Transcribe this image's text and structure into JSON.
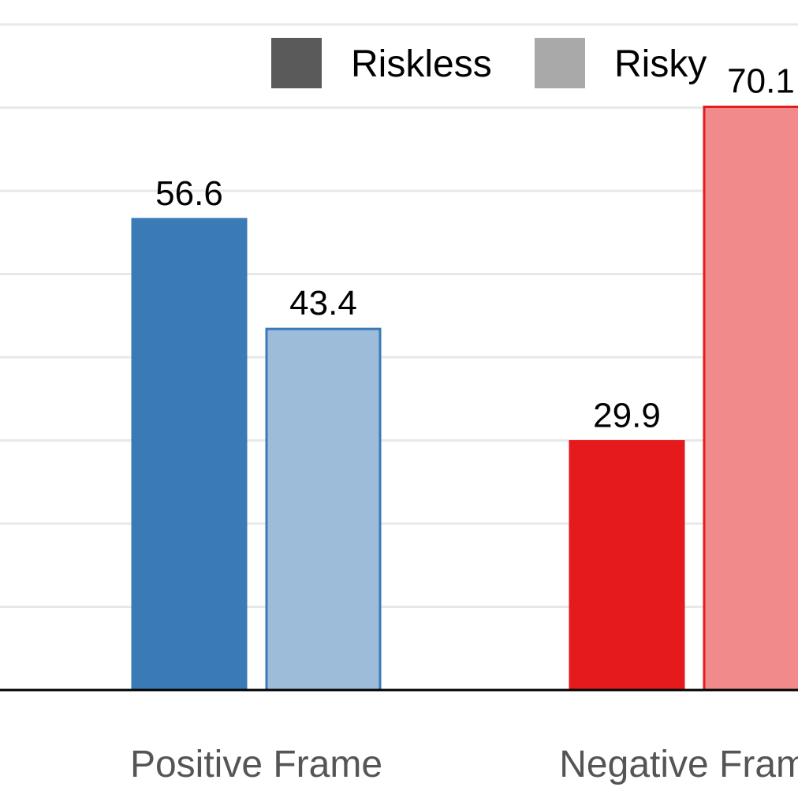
{
  "chart_data": {
    "type": "bar",
    "title": "",
    "xlabel": "",
    "ylabel": "",
    "categories": [
      "Positive Frame",
      "Negative Frame"
    ],
    "series": [
      {
        "name": "Riskless",
        "values": [
          56.6,
          29.9
        ],
        "labels": [
          "56.6",
          "29.9"
        ],
        "colors": [
          "#3a7ab5",
          "#e41a1c"
        ],
        "border_colors": [
          "#3a7ab5",
          "#e41a1c"
        ]
      },
      {
        "name": "Risky",
        "values": [
          43.4,
          70.1
        ],
        "labels": [
          "43.4",
          "70.1"
        ],
        "colors": [
          "#9dbcd9",
          "#f08a8b"
        ],
        "border_colors": [
          "#3a7ab5",
          "#e41a1c"
        ]
      }
    ],
    "legend": {
      "placement": "top-right",
      "swatch_colors": [
        "#5a5a5a",
        "#a9a9a9"
      ]
    },
    "ylim": [
      0,
      80
    ],
    "grid": true,
    "grid_step": 10,
    "colors": {
      "grid": "#e8e8e8",
      "axis": "#000000",
      "text": "#000000",
      "category_text": "#555555"
    }
  }
}
